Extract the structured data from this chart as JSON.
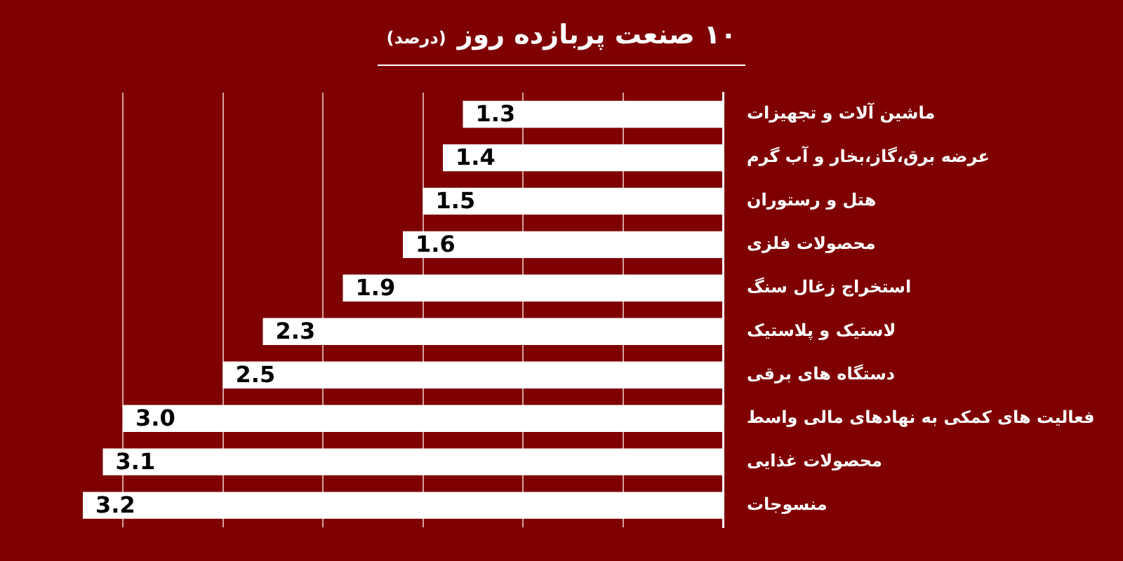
{
  "chart_data": {
    "type": "bar",
    "orientation": "horizontal",
    "title": "۱۰ صنعت پربازده روز",
    "subtitle": "(درصد)",
    "categories": [
      "ماشین آلات و تجهیزات",
      "عرضه برق،گاز،بخار و آب گرم",
      "هتل و رستوران",
      "محصولات فلزی",
      "استخراج زغال سنگ",
      "لاستیک و پلاستیک",
      "دستگاه های برقی",
      "فعالیت های کمکی به نهادهای مالی واسط",
      "محصولات غذایی",
      "منسوجات"
    ],
    "values": [
      1.3,
      1.4,
      1.5,
      1.6,
      1.9,
      2.3,
      2.5,
      3.0,
      3.1,
      3.2
    ],
    "value_labels": [
      "1.3",
      "1.4",
      "1.5",
      "1.6",
      "1.9",
      "2.3",
      "2.5",
      "3.0",
      "3.1",
      "3.2"
    ],
    "color": "#ffffff",
    "xlim": [
      3.2,
      0
    ],
    "xticks": [
      {
        "value": 0,
        "label": null
      },
      {
        "value": 0.5,
        "label": null
      },
      {
        "value": 1,
        "label": null
      },
      {
        "value": 1.5,
        "label": null
      },
      {
        "value": 2,
        "label": null
      },
      {
        "value": 2.5,
        "label": null
      },
      {
        "value": 3,
        "label": null
      }
    ],
    "grid": "x",
    "tick_labels": "y"
  }
}
